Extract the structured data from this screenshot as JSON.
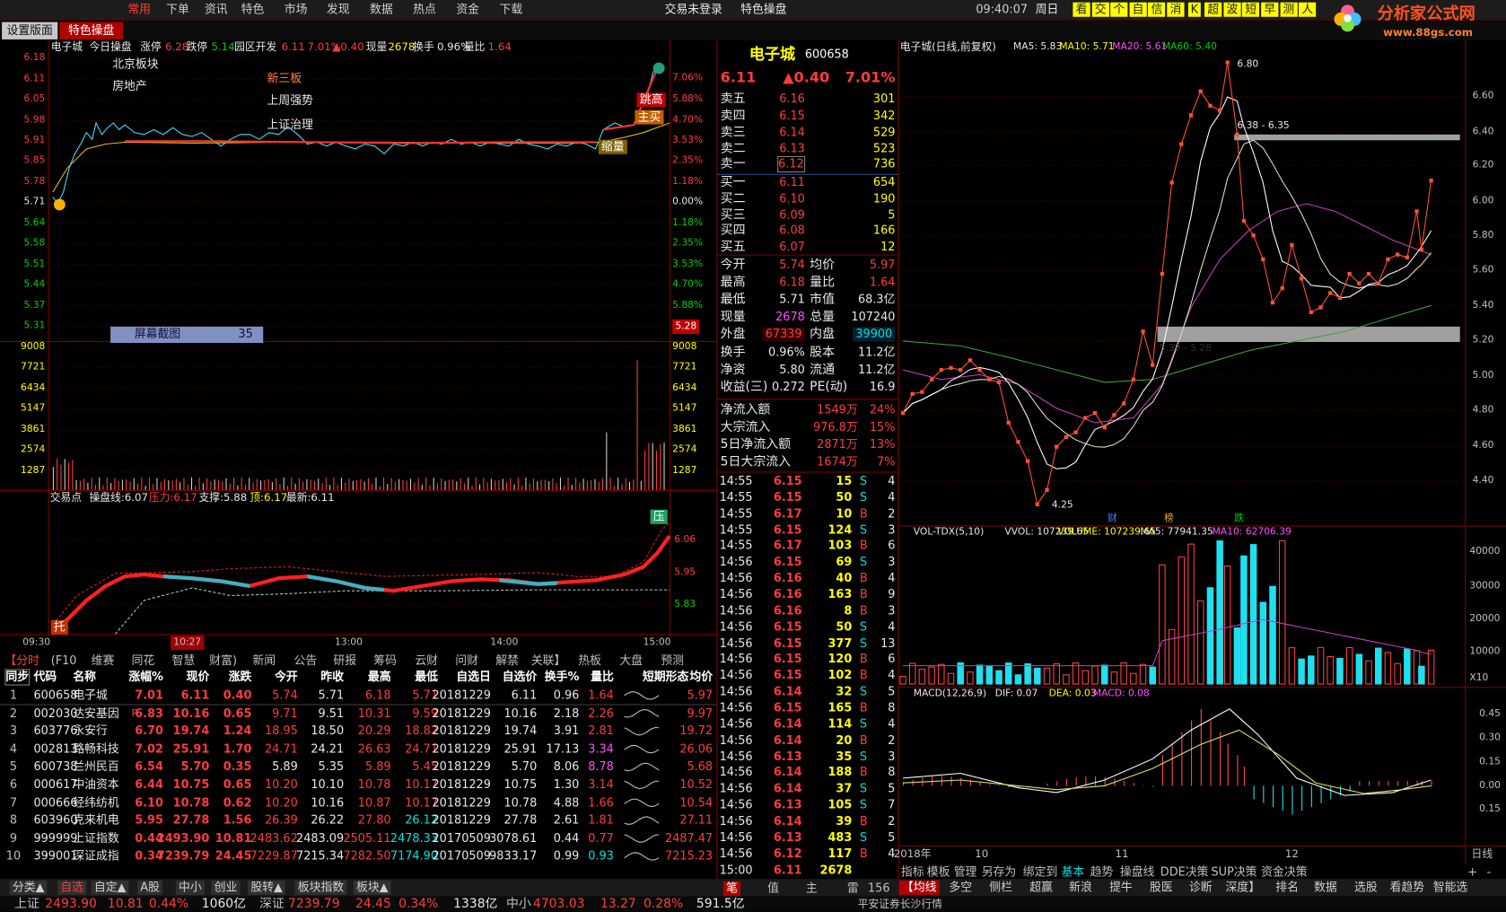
{
  "menu": {
    "items": [
      "常用",
      "下单",
      "资讯",
      "特色",
      "市场",
      "发现",
      "数据",
      "热点",
      "资金",
      "下载"
    ],
    "center": [
      "交易未登录",
      "特色操盘"
    ],
    "time": "09:40:07",
    "weekday": "周日",
    "buttons": [
      "看",
      "交",
      "个",
      "自",
      "信",
      "消",
      "K",
      "超",
      "波",
      "短",
      "早",
      "测",
      "人"
    ],
    "logo": "分析家公式网",
    "url": "www.88gs.com"
  },
  "tabs": [
    "设置版面",
    "特色操盘"
  ],
  "intraday": {
    "header": [
      "电子城",
      "今日操盘",
      "涨停",
      "6.28",
      "跌停",
      "5.14",
      "园区开发",
      "6.11",
      "7.01%",
      "▲0.40",
      "现量",
      "2678",
      "换手",
      "0.96%",
      "量比",
      "1.64"
    ],
    "price_ticks": [
      "6.18",
      "6.11",
      "6.05",
      "5.98",
      "5.91",
      "5.85",
      "5.78",
      "5.71",
      "5.64",
      "5.58",
      "5.51",
      "5.44",
      "5.37",
      "5.31"
    ],
    "pct_ticks": [
      "7.06%",
      "5.88%",
      "4.70%",
      "3.53%",
      "2.35%",
      "1.18%",
      "0.00%",
      "1.18%",
      "2.35%",
      "3.53%",
      "4.70%",
      "5.88%",
      "5.28"
    ],
    "vol_ticks": [
      "9008",
      "7721",
      "6434",
      "5147",
      "3861",
      "2574",
      "1287"
    ],
    "tags": [
      "北京板块",
      "房地产",
      "新三板",
      "上周强势",
      "上证治理"
    ],
    "marks": [
      "跳高",
      "主买",
      "缩量"
    ],
    "popup": [
      "屏幕截图",
      "35"
    ],
    "sub_header": [
      "交易点",
      "操盘线:6.07",
      "压力:6.17",
      "支撑:5.88",
      "顶:6.17",
      "最新:6.11"
    ],
    "sub_ticks": [
      "6.06",
      "5.95",
      "5.83"
    ],
    "sub_marks": [
      "压",
      "托"
    ],
    "time_labels": [
      "09:30",
      "10:27",
      "13:00",
      "14:00",
      "15:00"
    ]
  },
  "info_tabs": [
    "【分时",
    "(F10",
    "维赛",
    "同花",
    "智慧",
    "财富)",
    "新闻",
    "公告",
    "研报",
    "筹码",
    "云财",
    "问财",
    "解禁",
    "关联】",
    "热板",
    "大盘",
    "预测"
  ],
  "table": {
    "header": [
      "同步",
      "代码",
      "名称",
      "涨幅%",
      "现价",
      "涨跌",
      "今开",
      "昨收",
      "最高",
      "最低",
      "自选日",
      "自选价",
      "换手%",
      "量比",
      "短期形态",
      "均价"
    ],
    "flag": "R",
    "rows": [
      [
        "1",
        "600658",
        "电子城",
        "7.01",
        "6.11",
        "0.40",
        "5.74",
        "5.71",
        "6.18",
        "5.71",
        "20181229",
        "6.11",
        "0.96",
        "1.64",
        "5.97"
      ],
      [
        "2",
        "002030",
        "达安基因",
        "6.83",
        "10.16",
        "0.65",
        "9.71",
        "9.51",
        "10.31",
        "9.59",
        "20181229",
        "10.16",
        "2.18",
        "2.26",
        "9.97"
      ],
      [
        "3",
        "603776",
        "永安行",
        "6.70",
        "19.74",
        "1.24",
        "18.95",
        "18.50",
        "20.29",
        "18.82",
        "20181229",
        "19.74",
        "3.91",
        "2.81",
        "19.72"
      ],
      [
        "4",
        "002813",
        "路畅科技",
        "7.02",
        "25.91",
        "1.70",
        "24.71",
        "24.21",
        "26.63",
        "24.71",
        "20181229",
        "25.91",
        "17.13",
        "3.34",
        "26.06"
      ],
      [
        "5",
        "600738",
        "兰州民百",
        "6.54",
        "5.70",
        "0.35",
        "5.89",
        "5.35",
        "5.89",
        "5.45",
        "20181229",
        "5.70",
        "8.06",
        "8.78",
        "5.68"
      ],
      [
        "6",
        "000617",
        "中油资本",
        "6.44",
        "10.75",
        "0.65",
        "10.20",
        "10.10",
        "10.78",
        "10.17",
        "20181229",
        "10.75",
        "1.30",
        "3.14",
        "10.52"
      ],
      [
        "7",
        "000666",
        "经纬纺机",
        "6.10",
        "10.78",
        "0.62",
        "10.20",
        "10.16",
        "10.87",
        "10.17",
        "20181229",
        "10.78",
        "4.88",
        "1.66",
        "10.54"
      ],
      [
        "8",
        "603960",
        "克来机电",
        "5.95",
        "27.78",
        "1.56",
        "26.39",
        "26.22",
        "27.80",
        "26.12",
        "20181229",
        "27.78",
        "2.61",
        "1.81",
        "27.11"
      ],
      [
        "9",
        "999999",
        "上证指数",
        "0.44",
        "2493.90",
        "10.81",
        "2483.62",
        "2483.09",
        "2505.11",
        "2478.33",
        "20170509",
        "3078.61",
        "0.44",
        "0.77",
        "2487.47"
      ],
      [
        "10",
        "399001",
        "深证成指",
        "0.34",
        "7239.79",
        "24.45",
        "7229.87",
        "7215.34",
        "7282.50",
        "7174.90",
        "20170509",
        "9833.17",
        "0.99",
        "0.93",
        "7215.23"
      ]
    ]
  },
  "quote": {
    "name": "电子城",
    "code": "600658",
    "price": "6.11",
    "change": "▲0.40",
    "pct": "7.01%",
    "book": [
      [
        "卖五",
        "6.16",
        "301"
      ],
      [
        "卖四",
        "6.15",
        "342"
      ],
      [
        "卖三",
        "6.14",
        "529"
      ],
      [
        "卖二",
        "6.13",
        "523"
      ],
      [
        "卖一",
        "6.12",
        "736"
      ],
      [
        "买一",
        "6.11",
        "654"
      ],
      [
        "买二",
        "6.10",
        "190"
      ],
      [
        "买三",
        "6.09",
        "5"
      ],
      [
        "买四",
        "6.08",
        "166"
      ],
      [
        "买五",
        "6.07",
        "12"
      ]
    ],
    "stats": [
      [
        "今开",
        "5.74",
        "均价",
        "5.97"
      ],
      [
        "最高",
        "6.18",
        "量比",
        "1.64"
      ],
      [
        "最低",
        "5.71",
        "市值",
        "68.3亿"
      ],
      [
        "现量",
        "2678",
        "总量",
        "107240"
      ],
      [
        "外盘",
        "67339",
        "内盘",
        "39900"
      ],
      [
        "换手",
        "0.96%",
        "股本",
        "11.2亿"
      ],
      [
        "净资",
        "5.80",
        "流通",
        "11.2亿"
      ],
      [
        "收益(三)",
        "0.272",
        "PE(动)",
        "16.9"
      ]
    ],
    "flows": [
      [
        "净流入额",
        "1549万",
        "24%"
      ],
      [
        "大宗流入",
        "976.8万",
        "15%"
      ],
      [
        "5日净流入额",
        "2871万",
        "13%"
      ],
      [
        "5日大宗流入",
        "1674万",
        "7%"
      ]
    ],
    "ticks": [
      [
        "14:55",
        "6.15",
        "15",
        "S",
        "4"
      ],
      [
        "14:55",
        "6.15",
        "50",
        "S",
        "4"
      ],
      [
        "14:55",
        "6.17",
        "10",
        "B",
        "2"
      ],
      [
        "14:55",
        "6.15",
        "124",
        "S",
        "3"
      ],
      [
        "14:55",
        "6.17",
        "103",
        "B",
        "6"
      ],
      [
        "14:56",
        "6.15",
        "69",
        "S",
        "3"
      ],
      [
        "14:56",
        "6.16",
        "40",
        "B",
        "4"
      ],
      [
        "14:56",
        "6.16",
        "163",
        "B",
        "9"
      ],
      [
        "14:56",
        "6.16",
        "8",
        "B",
        "3"
      ],
      [
        "14:56",
        "6.15",
        "50",
        "S",
        "4"
      ],
      [
        "14:56",
        "6.15",
        "377",
        "S",
        "13"
      ],
      [
        "14:56",
        "6.15",
        "120",
        "B",
        "6"
      ],
      [
        "14:56",
        "6.15",
        "102",
        "B",
        "4"
      ],
      [
        "14:56",
        "6.14",
        "32",
        "S",
        "5"
      ],
      [
        "14:56",
        "6.15",
        "165",
        "B",
        "8"
      ],
      [
        "14:56",
        "6.14",
        "114",
        "S",
        "4"
      ],
      [
        "14:56",
        "6.14",
        "20",
        "B",
        "2"
      ],
      [
        "14:56",
        "6.13",
        "35",
        "S",
        "3"
      ],
      [
        "14:56",
        "6.14",
        "188",
        "B",
        "8"
      ],
      [
        "14:56",
        "6.14",
        "37",
        "S",
        "5"
      ],
      [
        "14:56",
        "6.13",
        "105",
        "S",
        "7"
      ],
      [
        "14:56",
        "6.14",
        "39",
        "B",
        "2"
      ],
      [
        "14:56",
        "6.13",
        "483",
        "S",
        "5"
      ],
      [
        "14:56",
        "6.12",
        "117",
        "B",
        "4"
      ],
      [
        "15:00",
        "6.11",
        "2678"
      ]
    ],
    "tabs": [
      "笔",
      "值",
      "主",
      "雷",
      "156"
    ]
  },
  "daily": {
    "title": "电子城(日线,前复权)",
    "ma": [
      "MA5: 5.83",
      "MA10: 5.71",
      "MA20: 5.61",
      "MA60: 5.40"
    ],
    "notes": [
      "6.80",
      "6.38 - 6.35",
      "5.39 - 5.28",
      "4.25",
      "财",
      "榜",
      "跌"
    ],
    "price_ticks": [
      "6.60",
      "6.40",
      "6.20",
      "6.00",
      "5.80",
      "5.60",
      "5.40",
      "5.20",
      "5.00",
      "4.80",
      "4.60",
      "4.40"
    ],
    "vol_header": [
      "VOL-TDX(5,10)",
      "VVOL: 107239.65",
      "VOLUME: 107239.65",
      "MA5: 77941.35",
      "MA10: 62706.39"
    ],
    "vol_ticks": [
      "40000",
      "30000",
      "20000",
      "10000",
      "X10"
    ],
    "macd_header": [
      "MACD(12,26,9)",
      "DIF: 0.07",
      "DEA: 0.03",
      "MACD: 0.08"
    ],
    "macd_ticks": [
      "0.45",
      "0.30",
      "0.15",
      "0.00",
      "0.15"
    ],
    "x_labels": [
      "2018年",
      "10",
      "11",
      "12",
      "日线"
    ],
    "tools": [
      "指标",
      "模板",
      "管理",
      "另存为",
      "绑定到",
      "基本",
      "趋势",
      "操盘线",
      "DDE决策",
      "SUP决策",
      "资金决策",
      "+",
      "-"
    ]
  },
  "bottom_tabs": [
    "分类▲",
    "自选",
    "自定▲",
    "A股",
    "中小",
    "创业",
    "股转▲",
    "板块指数",
    "板块▲"
  ],
  "right_tabs": [
    "【均线",
    "多空",
    "侧栏",
    "超赢",
    "新浪",
    "提牛",
    "股医",
    "诊断",
    "深度】",
    "排名",
    "数据",
    "选股",
    "看趋势",
    "智能选"
  ],
  "status": [
    "上证",
    "2493.90",
    "10.81",
    "0.44%",
    "1060亿",
    "深证",
    "7239.79",
    "24.45",
    "0.34%",
    "1338亿",
    "中小",
    "4703.03",
    "13.27",
    "0.28%",
    "591.5亿",
    "平安证券长沙行情"
  ]
}
